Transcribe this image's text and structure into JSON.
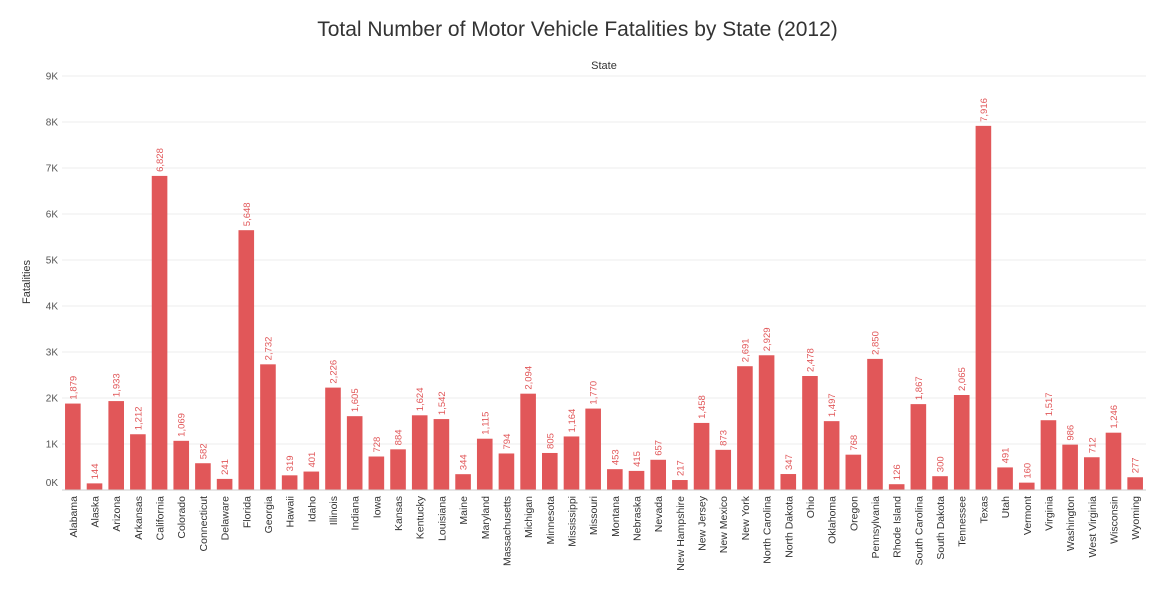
{
  "title": "Total Number of Motor Vehicle Fatalities by State (2012)",
  "chart_data": {
    "type": "bar",
    "title": "Total Number of Motor Vehicle Fatalities by State (2012)",
    "xlabel": "State",
    "ylabel": "Fatalities",
    "ylim": [
      0,
      9000
    ],
    "yticks": [
      "0K",
      "1K",
      "2K",
      "3K",
      "4K",
      "5K",
      "6K",
      "7K",
      "8K",
      "9K"
    ],
    "grid": true,
    "bar_color": "#e15759",
    "label_color": "#e15759",
    "categories": [
      "Alabama",
      "Alaska",
      "Arizona",
      "Arkansas",
      "California",
      "Colorado",
      "Connecticut",
      "Delaware",
      "Florida",
      "Georgia",
      "Hawaii",
      "Idaho",
      "Illinois",
      "Indiana",
      "Iowa",
      "Kansas",
      "Kentucky",
      "Louisiana",
      "Maine",
      "Maryland",
      "Massachusetts",
      "Michigan",
      "Minnesota",
      "Mississippi",
      "Missouri",
      "Montana",
      "Nebraska",
      "Nevada",
      "New Hampshire",
      "New Jersey",
      "New Mexico",
      "New York",
      "North Carolina",
      "North Dakota",
      "Ohio",
      "Oklahoma",
      "Oregon",
      "Pennsylvania",
      "Rhode Island",
      "South Carolina",
      "South Dakota",
      "Tennessee",
      "Texas",
      "Utah",
      "Vermont",
      "Virginia",
      "Washington",
      "West Virginia",
      "Wisconsin",
      "Wyoming"
    ],
    "values": [
      1879,
      144,
      1933,
      1212,
      6828,
      1069,
      582,
      241,
      5648,
      2732,
      319,
      401,
      2226,
      1605,
      728,
      884,
      1624,
      1542,
      344,
      1115,
      794,
      2094,
      805,
      1164,
      1770,
      453,
      415,
      657,
      217,
      1458,
      873,
      2691,
      2929,
      347,
      2478,
      1497,
      768,
      2850,
      126,
      1867,
      300,
      2065,
      7916,
      491,
      160,
      1517,
      986,
      712,
      1246,
      277
    ],
    "value_labels": [
      "1,879",
      "144",
      "1,933",
      "1,212",
      "6,828",
      "1,069",
      "582",
      "241",
      "5,648",
      "2,732",
      "319",
      "401",
      "2,226",
      "1,605",
      "728",
      "884",
      "1,624",
      "1,542",
      "344",
      "1,115",
      "794",
      "2,094",
      "805",
      "1,164",
      "1,770",
      "453",
      "415",
      "657",
      "217",
      "1,458",
      "873",
      "2,691",
      "2,929",
      "347",
      "2,478",
      "1,497",
      "768",
      "2,850",
      "126",
      "1,867",
      "300",
      "2,065",
      "7,916",
      "491",
      "160",
      "1,517",
      "986",
      "712",
      "1,246",
      "277"
    ]
  }
}
